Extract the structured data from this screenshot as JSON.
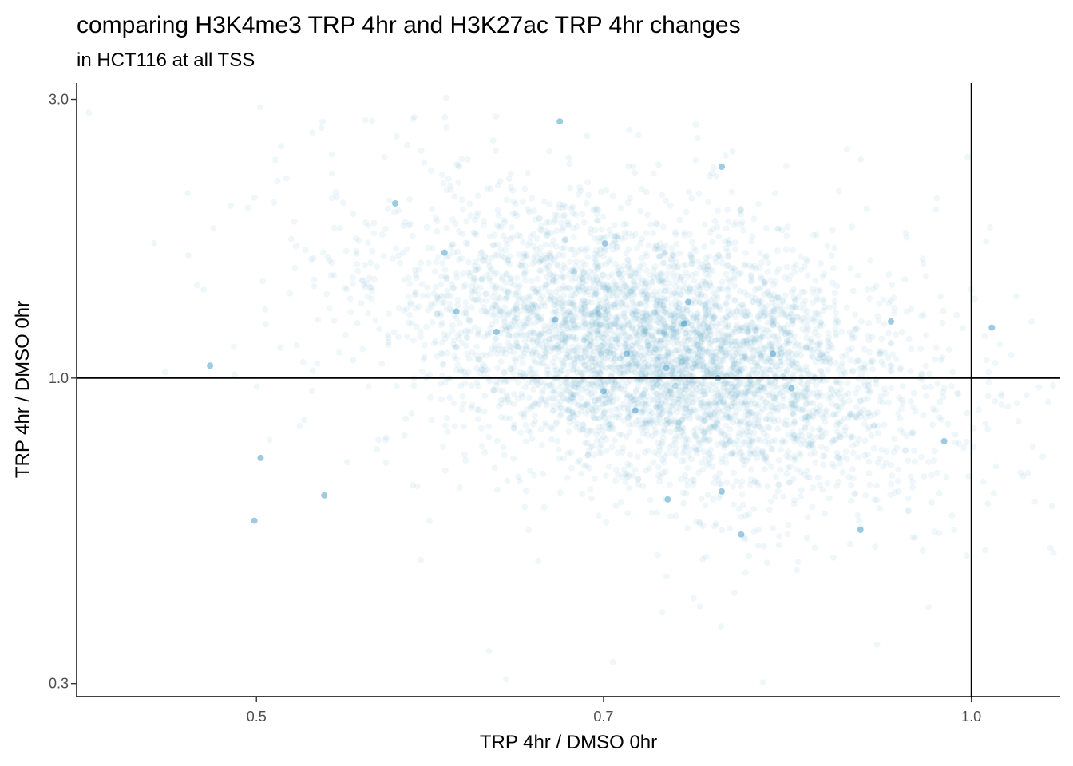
{
  "chart_data": {
    "type": "scatter",
    "title": "comparing H3K4me3 TRP 4hr and H3K27ac TRP 4hr changes",
    "subtitle": "in HCT116 at all TSS",
    "xlabel": "TRP 4hr / DMSO 0hr",
    "ylabel": "TRP 4hr / DMSO 0hr",
    "x_scale": "log",
    "y_scale": "log",
    "xlim": [
      0.42,
      1.09
    ],
    "ylim": [
      0.285,
      3.2
    ],
    "x_ticks": [
      {
        "value": 0.5,
        "label": "0.5"
      },
      {
        "value": 0.7,
        "label": "0.7"
      },
      {
        "value": 1.0,
        "label": "1.0"
      }
    ],
    "y_ticks": [
      {
        "value": 3.0,
        "label": "3.0"
      },
      {
        "value": 1.0,
        "label": "1.0"
      },
      {
        "value": 0.3,
        "label": "0.3"
      }
    ],
    "reference_lines": {
      "x": 1.0,
      "y": 1.0
    },
    "grid": false,
    "point_color": "#2b8cbe",
    "point_alpha": 0.07,
    "point_count": 5000,
    "cluster_center": {
      "x": 0.74,
      "y": 1.12
    },
    "points": [
      {
        "x": 0.671,
        "y": 2.75
      },
      {
        "x": 0.478,
        "y": 1.05
      },
      {
        "x": 0.572,
        "y": 1.99
      },
      {
        "x": 0.607,
        "y": 1.3
      },
      {
        "x": 0.668,
        "y": 1.26
      },
      {
        "x": 0.716,
        "y": 1.1
      },
      {
        "x": 0.7,
        "y": 0.95
      },
      {
        "x": 0.744,
        "y": 1.04
      },
      {
        "x": 0.757,
        "y": 1.24
      },
      {
        "x": 0.782,
        "y": 1.0
      },
      {
        "x": 0.785,
        "y": 0.64
      },
      {
        "x": 0.745,
        "y": 0.62
      },
      {
        "x": 0.502,
        "y": 0.73
      },
      {
        "x": 0.499,
        "y": 0.57
      },
      {
        "x": 0.534,
        "y": 0.63
      },
      {
        "x": 0.8,
        "y": 0.54
      },
      {
        "x": 0.898,
        "y": 0.55
      },
      {
        "x": 0.925,
        "y": 1.25
      },
      {
        "x": 0.974,
        "y": 0.78
      },
      {
        "x": 1.02,
        "y": 1.22
      },
      {
        "x": 0.785,
        "y": 2.3
      },
      {
        "x": 0.631,
        "y": 1.2
      },
      {
        "x": 0.701,
        "y": 1.7
      },
      {
        "x": 0.84,
        "y": 0.96
      },
      {
        "x": 0.722,
        "y": 0.88
      },
      {
        "x": 0.6,
        "y": 1.64
      },
      {
        "x": 0.76,
        "y": 1.35
      },
      {
        "x": 0.825,
        "y": 1.1
      }
    ]
  }
}
